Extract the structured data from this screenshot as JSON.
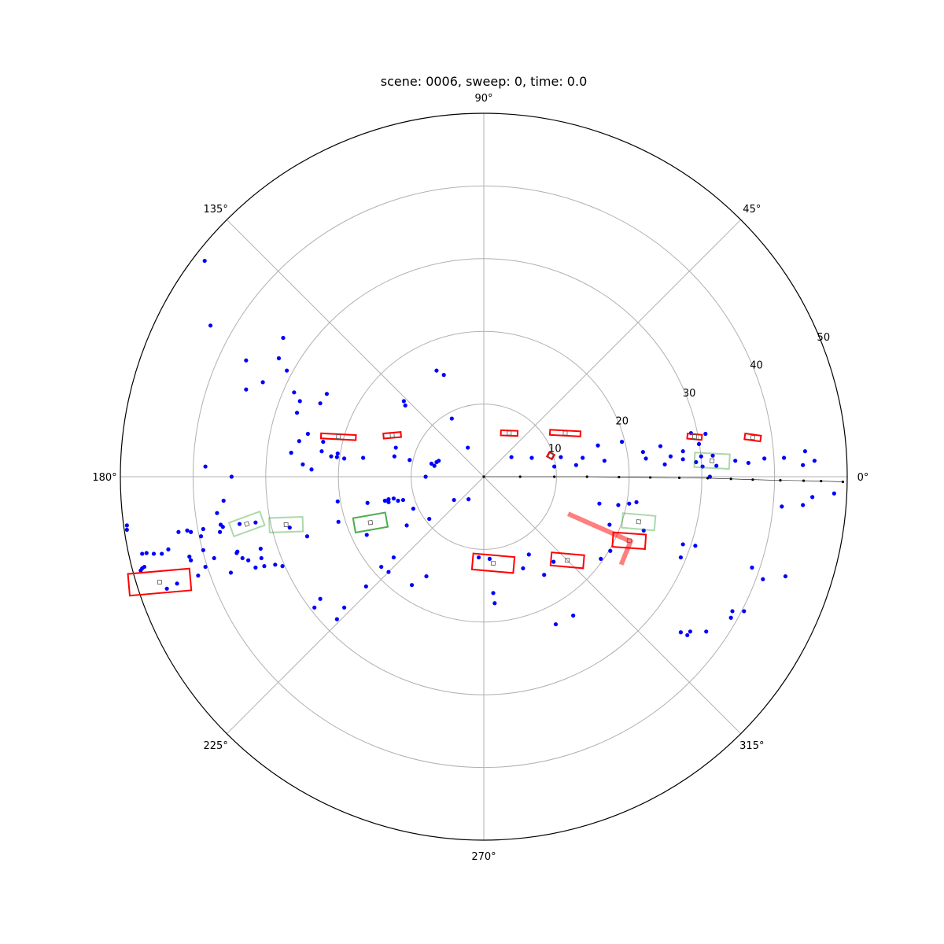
{
  "chart_data": {
    "type": "scatter",
    "projection": "polar",
    "title": "scene: 0006, sweep: 0, time: 0.0",
    "r_ticks": [
      10,
      20,
      30,
      40,
      50
    ],
    "r_tick_labels": [
      "10",
      "20",
      "30",
      "40",
      "50"
    ],
    "rlim": [
      0,
      50
    ],
    "theta_ticks_deg": [
      0,
      45,
      90,
      135,
      180,
      225,
      270,
      315
    ],
    "theta_tick_labels": [
      "0°",
      "45°",
      "90°",
      "135°",
      "180°",
      "225°",
      "270°",
      "315°"
    ],
    "grid": true,
    "colors": {
      "radar_points": "#0000ff",
      "trajectory": "#000000",
      "detection_boxes": "#ff0000",
      "ground_truth_boxes": "#2ca02c",
      "grid": "#b0b0b0"
    },
    "series": [
      {
        "kind": "points",
        "color": "#0000ff",
        "points_xy": [
          [
            -38.4,
            29.7
          ],
          [
            -37.6,
            20.8
          ],
          [
            -32.7,
            16.0
          ],
          [
            -27.6,
            19.1
          ],
          [
            -28.2,
            16.3
          ],
          [
            -30.4,
            13.0
          ],
          [
            -27.1,
            14.6
          ],
          [
            -32.7,
            12.0
          ],
          [
            -26.1,
            11.6
          ],
          [
            -25.3,
            10.4
          ],
          [
            -22.5,
            10.1
          ],
          [
            -21.6,
            11.4
          ],
          [
            -25.7,
            8.8
          ],
          [
            -24.2,
            5.9
          ],
          [
            -25.4,
            4.9
          ],
          [
            -26.5,
            3.3
          ],
          [
            -22.1,
            4.8
          ],
          [
            -21.0,
            2.8
          ],
          [
            -22.3,
            3.5
          ],
          [
            -20.1,
            3.2
          ],
          [
            -24.9,
            1.7
          ],
          [
            -23.7,
            1.0
          ],
          [
            -38.3,
            1.4
          ],
          [
            -34.7,
            0.0
          ],
          [
            -11.0,
            10.4
          ],
          [
            -10.8,
            9.8
          ],
          [
            -12.1,
            4.0
          ],
          [
            -6.5,
            14.6
          ],
          [
            -5.5,
            14.0
          ],
          [
            -4.4,
            8.0
          ],
          [
            -2.2,
            4.0
          ],
          [
            -20.2,
            2.7
          ],
          [
            -19.2,
            2.5
          ],
          [
            -16.6,
            2.6
          ],
          [
            -10.2,
            2.3
          ],
          [
            -7.2,
            1.8
          ],
          [
            -12.3,
            2.8
          ],
          [
            -8.0,
            0.0
          ],
          [
            -6.8,
            1.5
          ],
          [
            -6.5,
            2.0
          ],
          [
            -6.2,
            2.2
          ],
          [
            -2.1,
            -3.1
          ],
          [
            -20.1,
            -3.4
          ],
          [
            -16.0,
            -3.6
          ],
          [
            -13.6,
            -3.3
          ],
          [
            -13.1,
            -3.1
          ],
          [
            -11.1,
            -3.2
          ],
          [
            -40.8,
            -7.4
          ],
          [
            -46.7,
            -12.4
          ],
          [
            -46.4,
            -10.5
          ],
          [
            -44.3,
            -10.6
          ],
          [
            -42.0,
            -7.6
          ],
          [
            -38.6,
            -7.2
          ],
          [
            -40.3,
            -7.6
          ],
          [
            -36.2,
            -6.6
          ],
          [
            -31.4,
            -6.3
          ],
          [
            -35.8,
            -3.3
          ],
          [
            -36.7,
            -5.0
          ],
          [
            -36.3,
            -7.6
          ],
          [
            -35.9,
            -6.9
          ],
          [
            -38.9,
            -8.2
          ],
          [
            -38.6,
            -10.1
          ],
          [
            -43.4,
            -10.0
          ],
          [
            -45.4,
            -10.6
          ],
          [
            -47.2,
            -12.9
          ],
          [
            -47.0,
            -10.6
          ],
          [
            -40.5,
            -11.0
          ],
          [
            -40.3,
            -11.5
          ],
          [
            -49.1,
            -6.7
          ],
          [
            -49.1,
            -7.3
          ],
          [
            -47.0,
            -12.6
          ],
          [
            -42.2,
            -14.7
          ],
          [
            -43.6,
            -15.4
          ],
          [
            -34.0,
            -10.5
          ],
          [
            -37.1,
            -11.2
          ],
          [
            -27.7,
            -12.3
          ],
          [
            -30.6,
            -11.2
          ],
          [
            -32.4,
            -11.5
          ],
          [
            -33.9,
            -10.3
          ],
          [
            -38.3,
            -12.4
          ],
          [
            -39.3,
            -13.6
          ],
          [
            -31.4,
            -12.5
          ],
          [
            -30.2,
            -12.3
          ],
          [
            -28.7,
            -12.1
          ],
          [
            -26.7,
            -7.0
          ],
          [
            -24.3,
            -8.2
          ],
          [
            -33.6,
            -6.5
          ],
          [
            -20.0,
            -6.2
          ],
          [
            -30.7,
            -9.9
          ],
          [
            -33.2,
            -11.2
          ],
          [
            -34.8,
            -13.2
          ],
          [
            -16.1,
            -8.0
          ],
          [
            -10.6,
            -6.7
          ],
          [
            -13.1,
            -3.5
          ],
          [
            -11.8,
            -3.3
          ],
          [
            -9.7,
            -4.4
          ],
          [
            -12.4,
            -3.0
          ],
          [
            -7.5,
            -5.8
          ],
          [
            -4.1,
            -3.2
          ],
          [
            -0.7,
            -11.1
          ],
          [
            0.8,
            -11.3
          ],
          [
            8.3,
            -13.5
          ],
          [
            5.4,
            -12.6
          ],
          [
            6.2,
            -10.7
          ],
          [
            9.6,
            -11.7
          ],
          [
            15.9,
            -3.7
          ],
          [
            16.1,
            -11.3
          ],
          [
            20.0,
            -3.7
          ],
          [
            18.5,
            -3.9
          ],
          [
            21.0,
            -3.5
          ],
          [
            27.4,
            -9.3
          ],
          [
            27.1,
            -11.1
          ],
          [
            17.3,
            -6.6
          ],
          [
            17.4,
            -10.2
          ],
          [
            3.8,
            2.7
          ],
          [
            6.6,
            2.6
          ],
          [
            10.6,
            2.7
          ],
          [
            13.6,
            2.6
          ],
          [
            12.7,
            1.6
          ],
          [
            9.7,
            1.4
          ],
          [
            15.7,
            4.3
          ],
          [
            19.0,
            4.8
          ],
          [
            16.6,
            2.2
          ],
          [
            24.3,
            4.2
          ],
          [
            22.3,
            2.5
          ],
          [
            21.9,
            3.4
          ],
          [
            27.4,
            3.5
          ],
          [
            29.6,
            4.5
          ],
          [
            29.9,
            2.8
          ],
          [
            30.1,
            1.4
          ],
          [
            27.4,
            2.4
          ],
          [
            29.2,
            2.0
          ],
          [
            31.5,
            2.9
          ],
          [
            34.6,
            2.2
          ],
          [
            36.4,
            1.9
          ],
          [
            38.6,
            2.5
          ],
          [
            41.3,
            2.6
          ],
          [
            45.5,
            2.2
          ],
          [
            44.2,
            3.5
          ],
          [
            43.9,
            1.6
          ],
          [
            30.5,
            5.9
          ],
          [
            28.5,
            6.0
          ],
          [
            25.7,
            2.8
          ],
          [
            24.9,
            1.7
          ],
          [
            32.0,
            1.5
          ],
          [
            31.1,
            0.0
          ],
          [
            22.0,
            -7.4
          ],
          [
            29.1,
            -9.5
          ],
          [
            38.4,
            -14.1
          ],
          [
            41.5,
            -13.7
          ],
          [
            36.9,
            -12.5
          ],
          [
            41.0,
            -4.1
          ],
          [
            43.9,
            -3.9
          ],
          [
            45.2,
            -2.8
          ],
          [
            48.2,
            -2.3
          ],
          [
            35.8,
            -18.5
          ],
          [
            34.2,
            -18.5
          ],
          [
            34.0,
            -19.4
          ],
          [
            28.0,
            -21.8
          ],
          [
            27.1,
            -21.4
          ],
          [
            28.4,
            -21.3
          ],
          [
            30.6,
            -21.3
          ],
          [
            1.3,
            -16.0
          ],
          [
            1.5,
            -17.4
          ],
          [
            9.9,
            -20.3
          ],
          [
            12.3,
            -19.1
          ],
          [
            -20.2,
            -19.6
          ],
          [
            -23.3,
            -18.0
          ],
          [
            -22.5,
            -16.8
          ],
          [
            -16.2,
            -15.1
          ],
          [
            -13.1,
            -13.1
          ],
          [
            -19.2,
            -18.0
          ],
          [
            -14.1,
            -12.4
          ],
          [
            -12.4,
            -11.1
          ],
          [
            -9.9,
            -14.9
          ],
          [
            -7.9,
            -13.7
          ]
        ]
      },
      {
        "kind": "trajectory",
        "color": "#000000",
        "points_xy": [
          [
            0,
            0
          ],
          [
            5,
            0
          ],
          [
            9.7,
            0
          ],
          [
            14.2,
            0
          ],
          [
            18.6,
            -0.05
          ],
          [
            22.9,
            -0.1
          ],
          [
            26.9,
            -0.15
          ],
          [
            30.8,
            -0.2
          ],
          [
            34.0,
            -0.3
          ],
          [
            37.0,
            -0.4
          ],
          [
            40.8,
            -0.5
          ],
          [
            44.0,
            -0.55
          ],
          [
            46.4,
            -0.6
          ],
          [
            49.4,
            -0.7
          ]
        ]
      },
      {
        "kind": "boxes",
        "color": "#ff0000",
        "boxes": [
          {
            "cx": 3.5,
            "cy": 6.0,
            "l": 2.3,
            "w": 0.7,
            "angle": -2
          },
          {
            "cx": 11.2,
            "cy": 6.0,
            "l": 4.2,
            "w": 0.7,
            "angle": -3
          },
          {
            "cx": 9.2,
            "cy": 2.9,
            "l": 0.8,
            "w": 0.7,
            "angle": -30
          },
          {
            "cx": 29.0,
            "cy": 5.5,
            "l": 2.0,
            "w": 0.7,
            "angle": -5
          },
          {
            "cx": 37.0,
            "cy": 5.4,
            "l": 2.2,
            "w": 0.8,
            "angle": -8
          },
          {
            "cx": -20.0,
            "cy": 5.5,
            "l": 4.8,
            "w": 0.7,
            "angle": -3
          },
          {
            "cx": -12.6,
            "cy": 5.7,
            "l": 2.4,
            "w": 0.7,
            "angle": 5
          },
          {
            "cx": 1.3,
            "cy": -11.9,
            "l": 5.7,
            "w": 2.2,
            "angle": -5
          },
          {
            "cx": 11.5,
            "cy": -11.5,
            "l": 4.5,
            "w": 1.8,
            "angle": -5
          },
          {
            "cx": 20.0,
            "cy": -8.8,
            "l": 4.5,
            "w": 2.0,
            "angle": -4
          },
          {
            "cx": -44.6,
            "cy": -14.5,
            "l": 8.5,
            "w": 3.0,
            "angle": 5
          }
        ]
      },
      {
        "kind": "boxes",
        "color": "#2ca02c",
        "boxes": [
          {
            "cx": 21.3,
            "cy": -6.2,
            "l": 4.5,
            "w": 2.0,
            "angle": -5
          },
          {
            "cx": 31.4,
            "cy": 2.2,
            "l": 4.8,
            "w": 2.0,
            "angle": -3
          },
          {
            "cx": -15.6,
            "cy": -6.3,
            "l": 4.5,
            "w": 2.0,
            "angle": 10
          },
          {
            "cx": -27.2,
            "cy": -6.6,
            "l": 4.6,
            "w": 2.0,
            "angle": 2
          },
          {
            "cx": -32.6,
            "cy": -6.5,
            "l": 4.5,
            "w": 2.0,
            "angle": 20
          }
        ]
      }
    ]
  }
}
